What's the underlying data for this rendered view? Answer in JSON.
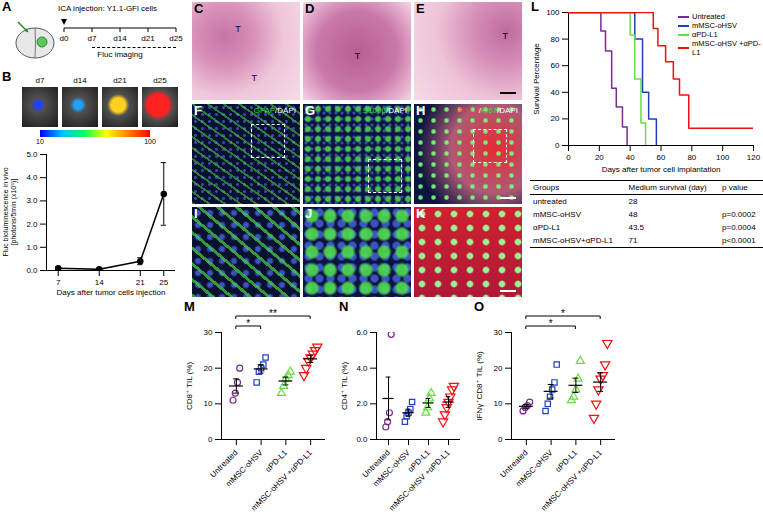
{
  "panels": {
    "A": {
      "label": "A",
      "annotation": "ICA injection: Y1.1-GFl cells",
      "timeline": [
        "d0",
        "d7",
        "d14",
        "d21",
        "d25"
      ],
      "timeline_label": "Fluc imaging"
    },
    "B": {
      "label": "B",
      "image_labels": [
        "d7",
        "d14",
        "d21",
        "d25"
      ],
      "colorbar": {
        "range": [
          10,
          100
        ],
        "ticks": [
          10,
          100
        ]
      }
    },
    "histology": [
      {
        "label": "C",
        "marks": [
          "T",
          "T"
        ]
      },
      {
        "label": "D",
        "marks": [
          "T"
        ]
      },
      {
        "label": "E",
        "marks": [
          "T"
        ]
      }
    ],
    "fluorescence": [
      {
        "label": "F",
        "stain": [
          {
            "text": "GFAP",
            "color": "#3ddc3d"
          },
          {
            "text": "/DAPI",
            "color": "#ffffff"
          }
        ]
      },
      {
        "label": "G",
        "stain": [
          {
            "text": "S100β",
            "color": "#3ddc3d"
          },
          {
            "text": "/DAPI",
            "color": "#ffffff"
          }
        ]
      },
      {
        "label": "H",
        "stain": [
          {
            "text": "PD-L1",
            "color": "#ff3030"
          },
          {
            "text": "/",
            "color": "#ffffff"
          },
          {
            "text": "Ki67",
            "color": "#3ddc3d"
          },
          {
            "text": "/DAPI",
            "color": "#ffffff"
          }
        ]
      }
    ],
    "zoom": [
      {
        "label": "I"
      },
      {
        "label": "J"
      },
      {
        "label": "K"
      }
    ],
    "table": {
      "header": [
        "Groups",
        "Medium survival (day)",
        "p value"
      ],
      "rows": [
        [
          "untreated",
          28,
          null
        ],
        [
          "mMSC-oHSV",
          48,
          "p=0.0002"
        ],
        [
          "αPD-L1",
          43.5,
          "p=0.0004"
        ],
        [
          "mMSC-oHSV+αPD-L1",
          71,
          "p<0.0001"
        ]
      ]
    }
  },
  "chart_data": [
    {
      "panel": "B",
      "type": "line",
      "xlabel": "Days after tumor cells injection",
      "ylabel": "Fluc bioluminescence in vivo [photons/5min (x10⁵)]",
      "x": [
        7,
        14,
        21,
        25
      ],
      "values": [
        0.1,
        0.05,
        0.4,
        3.3
      ],
      "errors": [
        0.05,
        0.05,
        0.15,
        1.35
      ],
      "color": "#000000",
      "marker": "circle",
      "xlim": [
        5,
        27
      ],
      "xticks": [
        7,
        14,
        21,
        25
      ],
      "ylim": [
        0,
        5
      ],
      "yticks": [
        0,
        1,
        2,
        3,
        4,
        5
      ]
    },
    {
      "panel": "L",
      "type": "line",
      "line_style": "step",
      "xlabel": "Days after tumor cell implantation",
      "ylabel": "Survival Percentage",
      "xlim": [
        0,
        120
      ],
      "xticks": [
        0,
        20,
        40,
        60,
        80,
        100,
        120
      ],
      "ylim": [
        0,
        100
      ],
      "yticks": [
        0,
        20,
        40,
        60,
        80,
        100
      ],
      "legend": "top-right",
      "series": [
        {
          "name": "Untreated",
          "color": "#7b2a8f",
          "x": [
            0,
            21,
            24,
            28,
            31,
            35,
            38
          ],
          "values": [
            100,
            86,
            71,
            43,
            29,
            14,
            0
          ]
        },
        {
          "name": "mMSC-oHSV",
          "color": "#1f3fbf",
          "x": [
            0,
            43,
            48,
            52,
            57
          ],
          "values": [
            100,
            80,
            40,
            20,
            0
          ]
        },
        {
          "name": "αPD-L1",
          "color": "#66dd44",
          "x": [
            0,
            40,
            43,
            47,
            50
          ],
          "values": [
            100,
            83,
            50,
            17,
            0
          ]
        },
        {
          "name": "mMSC-oHSV +αPD-L1",
          "color": "#ee1111",
          "x": [
            0,
            55,
            58,
            63,
            68,
            72,
            78,
            120
          ],
          "values": [
            100,
            88,
            75,
            63,
            50,
            38,
            13,
            13
          ]
        }
      ]
    },
    {
      "panel": "M",
      "type": "scatter",
      "ylabel": "CD8⁺ TIL (%)",
      "categories": [
        "Untreated",
        "mMSC-oHSV",
        "αPD-L1",
        "mMSC-oHSV +αPD-L1"
      ],
      "ylim": [
        0,
        30
      ],
      "yticks": [
        0,
        10,
        20,
        30
      ],
      "groups": [
        {
          "color": "#7b2a8f",
          "marker": "circle",
          "values": [
            11,
            13,
            16,
            20
          ],
          "mean": 15.0,
          "error": 2.0
        },
        {
          "color": "#1f3fbf",
          "marker": "square",
          "values": [
            16,
            19,
            20,
            21,
            23
          ],
          "mean": 19.8,
          "error": 1.2
        },
        {
          "color": "#66dd44",
          "marker": "triangle",
          "values": [
            13,
            15,
            17,
            18,
            19
          ],
          "mean": 16.4,
          "error": 1.1
        },
        {
          "color": "#ee1111",
          "marker": "triangle-down",
          "values": [
            18,
            20,
            22,
            23,
            24,
            25,
            26
          ],
          "mean": 22.6,
          "error": 1.0
        }
      ],
      "significance": [
        {
          "groups": [
            0,
            1
          ],
          "label": "*"
        },
        {
          "groups": [
            0,
            3
          ],
          "label": "**"
        }
      ]
    },
    {
      "panel": "N",
      "type": "scatter",
      "ylabel": "CD4⁺ TIL (%)",
      "categories": [
        "Untreated",
        "mMSC-oHSV",
        "αPD-L1",
        "mMSC-oHSV +αPD-L1"
      ],
      "ylim": [
        0,
        6
      ],
      "yticks": [
        0,
        2,
        4,
        6
      ],
      "groups": [
        {
          "color": "#7b2a8f",
          "marker": "circle",
          "values": [
            0.7,
            1.0,
            1.5,
            5.9
          ],
          "mean": 2.3,
          "error": 1.2
        },
        {
          "color": "#1f3fbf",
          "marker": "square",
          "values": [
            1.0,
            1.3,
            1.5,
            1.7,
            2.1
          ],
          "mean": 1.5,
          "error": 0.2
        },
        {
          "color": "#66dd44",
          "marker": "triangle",
          "values": [
            1.5,
            1.8,
            2.3,
            2.6
          ],
          "mean": 2.05,
          "error": 0.25
        },
        {
          "color": "#ee1111",
          "marker": "triangle-down",
          "values": [
            1.0,
            1.4,
            1.8,
            2.1,
            2.4,
            2.8,
            3.0
          ],
          "mean": 2.1,
          "error": 0.3
        }
      ],
      "significance": []
    },
    {
      "panel": "O",
      "type": "scatter",
      "ylabel": "IFNγ⁺CD8⁺ TIL (%)",
      "categories": [
        "Untreated",
        "mMSC-oHSV",
        "αPD-L1",
        "mMSC-oHSV +αPD-L1"
      ],
      "ylim": [
        0,
        30
      ],
      "yticks": [
        0,
        10,
        20,
        30
      ],
      "groups": [
        {
          "color": "#7b2a8f",
          "marker": "circle",
          "values": [
            8,
            9,
            9.5,
            10.5
          ],
          "mean": 9.3,
          "error": 0.5
        },
        {
          "color": "#1f3fbf",
          "marker": "square",
          "values": [
            8,
            10,
            12,
            14,
            16,
            21
          ],
          "mean": 13.5,
          "error": 1.9
        },
        {
          "color": "#66dd44",
          "marker": "triangle",
          "values": [
            11,
            12,
            14,
            17,
            22
          ],
          "mean": 15.2,
          "error": 2.0
        },
        {
          "color": "#ee1111",
          "marker": "triangle-down",
          "values": [
            6,
            10,
            14,
            17,
            18,
            21,
            27
          ],
          "mean": 16.1,
          "error": 2.6
        }
      ],
      "significance": [
        {
          "groups": [
            0,
            2
          ],
          "label": "*"
        },
        {
          "groups": [
            0,
            3
          ],
          "label": "*"
        }
      ]
    }
  ]
}
